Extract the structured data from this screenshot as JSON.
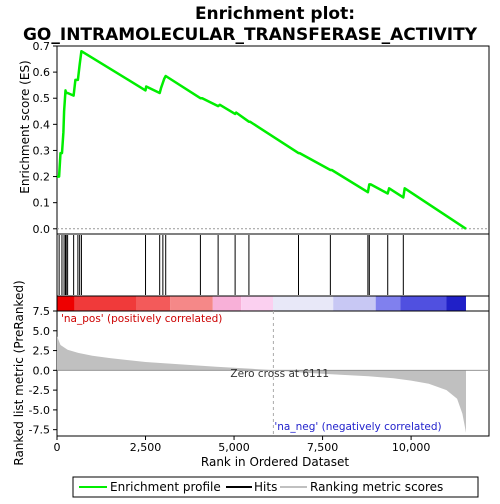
{
  "chart_data": {
    "type": "line",
    "title": "Enrichment plot: GO_INTRAMOLECULAR_TRANSFERASE_ACTIVITY",
    "title_lines": [
      "Enrichment plot:",
      "GO_INTRAMOLECULAR_TRANSFERASE_ACTIVITY"
    ],
    "es_panel": {
      "ylabel": "Enrichment score (ES)",
      "ylim": [
        -0.02,
        0.7
      ],
      "yticks": [
        0.0,
        0.1,
        0.2,
        0.3,
        0.4,
        0.5,
        0.6,
        0.7
      ],
      "ytick_labels": [
        "0.0",
        "0.1",
        "0.2",
        "0.3",
        "0.4",
        "0.5",
        "0.6",
        "0.7"
      ],
      "series": [
        {
          "name": "Enrichment profile",
          "color": "#00ee00",
          "x": [
            0,
            60,
            100,
            140,
            180,
            200,
            240,
            260,
            300,
            470,
            520,
            590,
            640,
            690,
            2500,
            2520,
            2900,
            2940,
            2990,
            3030,
            3070,
            4050,
            4100,
            4550,
            4600,
            5030,
            5060,
            5420,
            5450,
            6820,
            6850,
            7720,
            7760,
            8780,
            8820,
            8860,
            9340,
            9380,
            9780,
            9820,
            11550
          ],
          "y": [
            0.2,
            0.2,
            0.29,
            0.29,
            0.37,
            0.45,
            0.53,
            0.52,
            0.52,
            0.51,
            0.57,
            0.57,
            0.63,
            0.68,
            0.53,
            0.545,
            0.52,
            0.54,
            0.56,
            0.575,
            0.585,
            0.5,
            0.5,
            0.47,
            0.475,
            0.44,
            0.445,
            0.41,
            0.41,
            0.29,
            0.29,
            0.225,
            0.225,
            0.14,
            0.17,
            0.17,
            0.135,
            0.155,
            0.12,
            0.155,
            0.0
          ]
        }
      ]
    },
    "hits_panel": {
      "legend_name": "Hits",
      "hit_positions": [
        60,
        140,
        200,
        240,
        260,
        300,
        470,
        590,
        640,
        690,
        2500,
        2900,
        2990,
        3070,
        4050,
        4550,
        5030,
        5420,
        6820,
        7720,
        8780,
        8820,
        9340,
        9780
      ]
    },
    "rank_panel": {
      "ylabel": "Ranked list metric (PreRanked)",
      "xlabel": "Rank in Ordered Dataset",
      "ylim": [
        -8.3,
        7.5
      ],
      "yticks": [
        -7.5,
        -5.0,
        -2.5,
        0.0,
        2.5,
        5.0,
        7.5
      ],
      "ytick_labels": [
        "-7.5",
        "-5.0",
        "-2.5",
        "0.0",
        "2.5",
        "5.0",
        "7.5"
      ],
      "legend_name": "Ranking metric scores",
      "metric_curve": {
        "x": [
          0,
          100,
          300,
          600,
          1000,
          1500,
          2500,
          3500,
          4500,
          5500,
          6111,
          7000,
          8000,
          8800,
          9500,
          10000,
          10500,
          11000,
          11300,
          11450,
          11550
        ],
        "y": [
          4.3,
          3.2,
          2.6,
          2.2,
          1.85,
          1.55,
          1.05,
          0.75,
          0.45,
          0.2,
          0.0,
          -0.3,
          -0.55,
          -0.75,
          -1.0,
          -1.3,
          -1.7,
          -2.5,
          -3.6,
          -5.5,
          -7.9
        ]
      },
      "annotations": {
        "pos_label": "'na_pos' (positively correlated)",
        "neg_label": "'na_neg' (negatively correlated)",
        "zero_cross": "Zero cross at 6111",
        "zero_cross_x": 6111
      }
    },
    "x_axis": {
      "xlim": [
        0,
        12200
      ],
      "ticks": [
        0,
        2500,
        5000,
        7500,
        10000
      ],
      "tick_labels": [
        "0",
        "2,500",
        "5,000",
        "7,500",
        "10,000"
      ]
    },
    "color_bar": {
      "segments": [
        {
          "x0": 0,
          "x1": 500,
          "color": "#ee0000"
        },
        {
          "x0": 500,
          "x1": 2250,
          "color": "#f03a3a"
        },
        {
          "x0": 2250,
          "x1": 3200,
          "color": "#f35a5a"
        },
        {
          "x0": 3200,
          "x1": 4400,
          "color": "#f58888"
        },
        {
          "x0": 4400,
          "x1": 5200,
          "color": "#f8b0d8"
        },
        {
          "x0": 5200,
          "x1": 6100,
          "color": "#fbd0f0"
        },
        {
          "x0": 6100,
          "x1": 7800,
          "color": "#e8e8f8"
        },
        {
          "x0": 7800,
          "x1": 9000,
          "color": "#c8c8f4"
        },
        {
          "x0": 9000,
          "x1": 9700,
          "color": "#8080ee"
        },
        {
          "x0": 9700,
          "x1": 11000,
          "color": "#5050e0"
        },
        {
          "x0": 11000,
          "x1": 11550,
          "color": "#2020c8"
        }
      ]
    },
    "legend": {
      "items": [
        {
          "name": "Enrichment profile",
          "color": "#00ee00"
        },
        {
          "name": "Hits",
          "color": "#000000"
        },
        {
          "name": "Ranking metric scores",
          "color": "#c0c0c0"
        }
      ],
      "placement": "bottom"
    }
  }
}
